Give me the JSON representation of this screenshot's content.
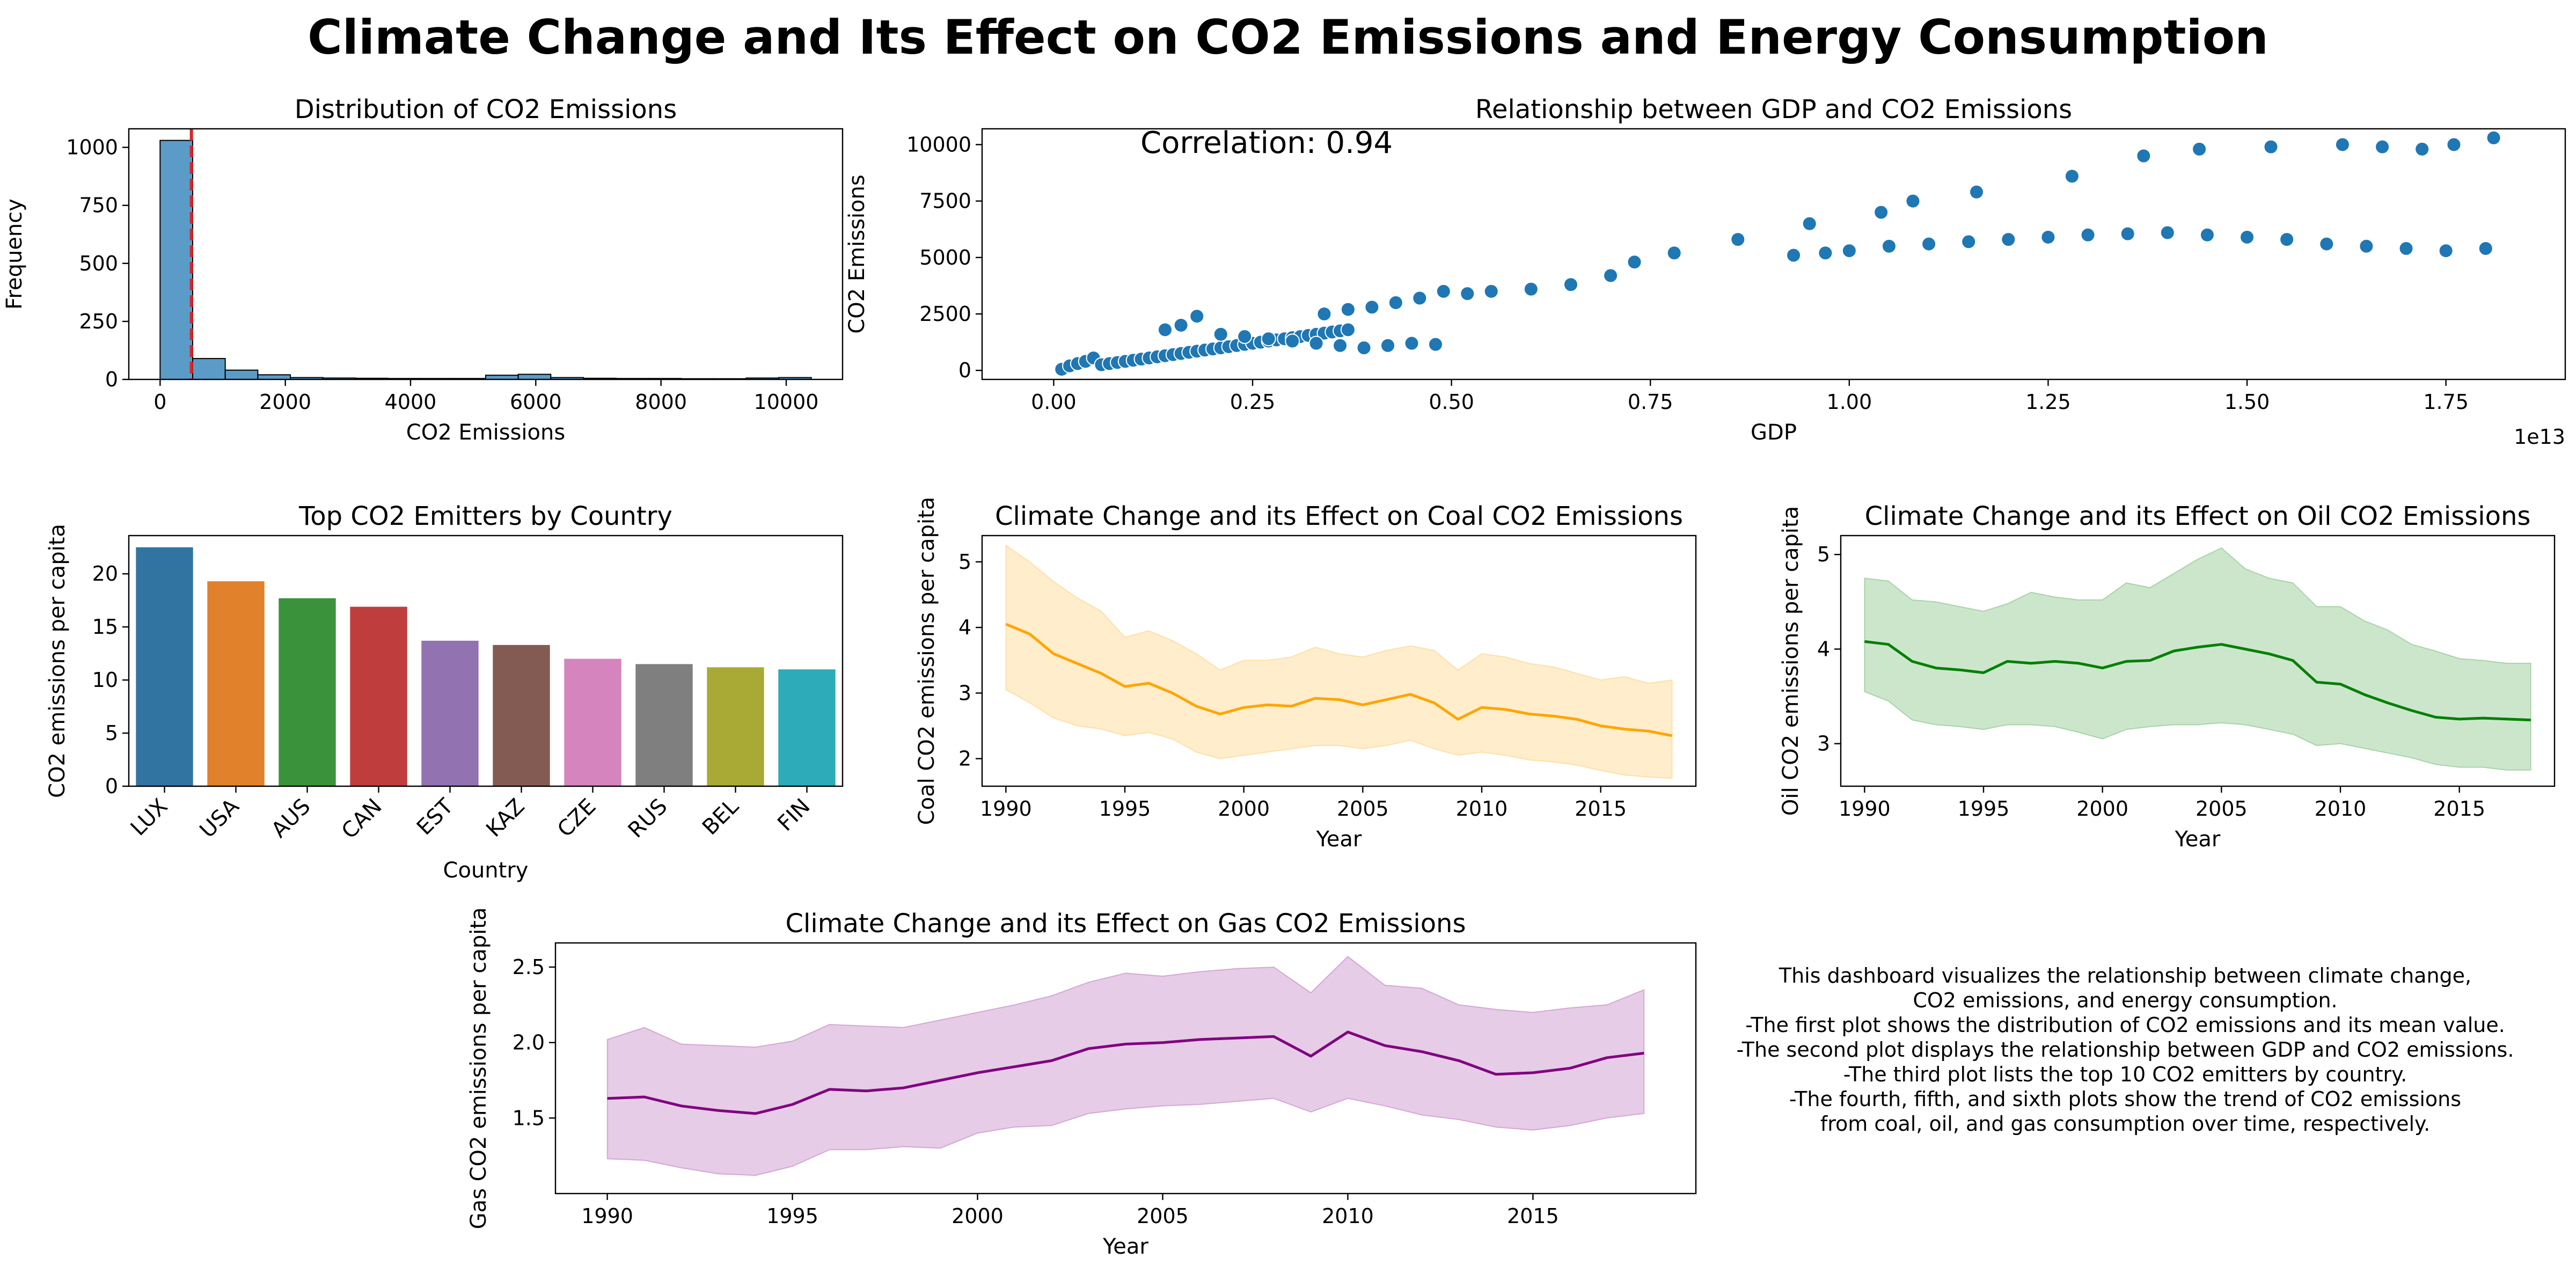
{
  "page": {
    "title": "Climate Change and Its Effect on CO2 Emissions and Energy Consumption",
    "description": [
      "This dashboard visualizes the relationship between climate change,",
      "CO2 emissions, and energy consumption.",
      "-The first plot shows the distribution of CO2 emissions and its mean value.",
      "-The second plot displays the relationship between GDP and CO2 emissions.",
      "-The third plot lists the top 10 CO2 emitters by country.",
      "-The fourth, fifth, and sixth plots show the trend of CO2 emissions",
      "from coal, oil, and gas consumption over time, respectively."
    ]
  },
  "colors": {
    "hist": "#5b9bc8",
    "mean_line": "#d62728",
    "scatter": "#1f77b4",
    "coal": "#ffa500",
    "oil": "#008000",
    "gas": "#800080",
    "bars": [
      "#3274a1",
      "#e1812c",
      "#3a923a",
      "#c03d3e",
      "#9372b2",
      "#845b53",
      "#d684bd",
      "#7f7f7f",
      "#a9aa35",
      "#2eabb8"
    ]
  },
  "chart_data": [
    {
      "id": "hist",
      "type": "bar",
      "title": "Distribution of CO2 Emissions",
      "xlabel": "CO2 Emissions",
      "ylabel": "Frequency",
      "xlim": [
        -500,
        10900
      ],
      "ylim": [
        0,
        1080
      ],
      "xticks": [
        0,
        2000,
        4000,
        6000,
        8000,
        10000
      ],
      "yticks": [
        0,
        250,
        500,
        750,
        1000
      ],
      "bin_edges": [
        0,
        520,
        1040,
        1560,
        2080,
        2600,
        3120,
        3640,
        4160,
        4680,
        5200,
        5720,
        6240,
        6760,
        7280,
        7800,
        8320,
        8840,
        9360,
        9880,
        10400
      ],
      "values": [
        1030,
        90,
        40,
        20,
        8,
        6,
        5,
        4,
        4,
        4,
        18,
        22,
        8,
        5,
        4,
        4,
        3,
        3,
        6,
        8
      ],
      "mean": 500
    },
    {
      "id": "scatter",
      "type": "scatter",
      "title": "Relationship between GDP and CO2 Emissions",
      "xlabel": "GDP",
      "ylabel": "CO2 Emissions",
      "xscale_label": "1e13",
      "annotation": "Correlation: 0.94",
      "xlim": [
        -0.09,
        1.9
      ],
      "ylim": [
        -400,
        10700
      ],
      "xticks": [
        0.0,
        0.25,
        0.5,
        0.75,
        1.0,
        1.25,
        1.5,
        1.75
      ],
      "xtick_labels": [
        "0.00",
        "0.25",
        "0.50",
        "0.75",
        "1.00",
        "1.25",
        "1.50",
        "1.75"
      ],
      "yticks": [
        0,
        2500,
        5000,
        7500,
        10000
      ],
      "points": [
        [
          0.01,
          50
        ],
        [
          0.02,
          200
        ],
        [
          0.03,
          300
        ],
        [
          0.04,
          400
        ],
        [
          0.05,
          550
        ],
        [
          0.06,
          250
        ],
        [
          0.07,
          300
        ],
        [
          0.08,
          350
        ],
        [
          0.09,
          400
        ],
        [
          0.1,
          450
        ],
        [
          0.11,
          500
        ],
        [
          0.12,
          550
        ],
        [
          0.13,
          600
        ],
        [
          0.14,
          650
        ],
        [
          0.15,
          700
        ],
        [
          0.16,
          750
        ],
        [
          0.17,
          800
        ],
        [
          0.18,
          850
        ],
        [
          0.19,
          900
        ],
        [
          0.2,
          950
        ],
        [
          0.21,
          1000
        ],
        [
          0.22,
          1050
        ],
        [
          0.23,
          1100
        ],
        [
          0.24,
          1150
        ],
        [
          0.25,
          1200
        ],
        [
          0.26,
          1250
        ],
        [
          0.27,
          1300
        ],
        [
          0.28,
          1350
        ],
        [
          0.29,
          1400
        ],
        [
          0.3,
          1450
        ],
        [
          0.31,
          1500
        ],
        [
          0.32,
          1550
        ],
        [
          0.33,
          1600
        ],
        [
          0.34,
          1650
        ],
        [
          0.35,
          1700
        ],
        [
          0.36,
          1750
        ],
        [
          0.37,
          1800
        ],
        [
          0.14,
          1800
        ],
        [
          0.16,
          2000
        ],
        [
          0.18,
          2400
        ],
        [
          0.21,
          1600
        ],
        [
          0.24,
          1500
        ],
        [
          0.27,
          1400
        ],
        [
          0.3,
          1300
        ],
        [
          0.33,
          1200
        ],
        [
          0.36,
          1100
        ],
        [
          0.39,
          1000
        ],
        [
          0.42,
          1100
        ],
        [
          0.45,
          1200
        ],
        [
          0.48,
          1150
        ],
        [
          0.34,
          2500
        ],
        [
          0.37,
          2700
        ],
        [
          0.4,
          2800
        ],
        [
          0.43,
          3000
        ],
        [
          0.46,
          3200
        ],
        [
          0.49,
          3500
        ],
        [
          0.52,
          3400
        ],
        [
          0.55,
          3500
        ],
        [
          0.6,
          3600
        ],
        [
          0.65,
          3800
        ],
        [
          0.7,
          4200
        ],
        [
          0.73,
          4800
        ],
        [
          0.78,
          5200
        ],
        [
          0.86,
          5800
        ],
        [
          0.93,
          5100
        ],
        [
          0.97,
          5200
        ],
        [
          1.0,
          5300
        ],
        [
          1.05,
          5500
        ],
        [
          1.1,
          5600
        ],
        [
          1.15,
          5700
        ],
        [
          1.2,
          5800
        ],
        [
          1.25,
          5900
        ],
        [
          1.3,
          6000
        ],
        [
          1.35,
          6050
        ],
        [
          1.4,
          6100
        ],
        [
          1.45,
          6000
        ],
        [
          1.5,
          5900
        ],
        [
          1.55,
          5800
        ],
        [
          1.6,
          5600
        ],
        [
          1.65,
          5500
        ],
        [
          1.7,
          5400
        ],
        [
          1.75,
          5300
        ],
        [
          1.8,
          5400
        ],
        [
          0.95,
          6500
        ],
        [
          1.04,
          7000
        ],
        [
          1.08,
          7500
        ],
        [
          1.16,
          7900
        ],
        [
          1.28,
          8600
        ],
        [
          1.37,
          9500
        ],
        [
          1.44,
          9800
        ],
        [
          1.53,
          9900
        ],
        [
          1.62,
          10000
        ],
        [
          1.67,
          9900
        ],
        [
          1.72,
          9800
        ],
        [
          1.76,
          10000
        ],
        [
          1.81,
          10300
        ]
      ]
    },
    {
      "id": "bars",
      "type": "bar",
      "title": "Top CO2 Emitters by Country",
      "xlabel": "Country",
      "ylabel": "CO2 emissions per capita",
      "categories": [
        "LUX",
        "USA",
        "AUS",
        "CAN",
        "EST",
        "KAZ",
        "CZE",
        "RUS",
        "BEL",
        "FIN"
      ],
      "values": [
        22.5,
        19.3,
        17.7,
        16.9,
        13.7,
        13.3,
        12.0,
        11.5,
        11.2,
        11.0
      ],
      "ylim": [
        0,
        23.6
      ],
      "yticks": [
        0,
        5,
        10,
        15,
        20
      ]
    },
    {
      "id": "coal",
      "type": "line",
      "title": "Climate Change and its Effect on Coal CO2 Emissions",
      "xlabel": "Year",
      "ylabel": "Coal CO2 emissions per capita",
      "x": [
        1990,
        1991,
        1992,
        1993,
        1994,
        1995,
        1996,
        1997,
        1998,
        1999,
        2000,
        2001,
        2002,
        2003,
        2004,
        2005,
        2006,
        2007,
        2008,
        2009,
        2010,
        2011,
        2012,
        2013,
        2014,
        2015,
        2016,
        2017,
        2018
      ],
      "y": [
        4.05,
        3.9,
        3.6,
        3.45,
        3.3,
        3.1,
        3.15,
        3.0,
        2.8,
        2.68,
        2.78,
        2.82,
        2.8,
        2.92,
        2.9,
        2.82,
        2.9,
        2.98,
        2.85,
        2.6,
        2.78,
        2.75,
        2.68,
        2.65,
        2.6,
        2.5,
        2.45,
        2.42,
        2.35
      ],
      "upper": [
        5.25,
        5.0,
        4.7,
        4.45,
        4.25,
        3.85,
        3.95,
        3.8,
        3.6,
        3.35,
        3.5,
        3.5,
        3.55,
        3.7,
        3.6,
        3.55,
        3.65,
        3.72,
        3.65,
        3.35,
        3.6,
        3.55,
        3.45,
        3.4,
        3.3,
        3.2,
        3.25,
        3.15,
        3.2
      ],
      "lower": [
        3.05,
        2.85,
        2.62,
        2.5,
        2.45,
        2.35,
        2.4,
        2.3,
        2.1,
        2.0,
        2.05,
        2.1,
        2.15,
        2.2,
        2.2,
        2.15,
        2.2,
        2.28,
        2.15,
        2.05,
        2.1,
        2.05,
        1.98,
        1.95,
        1.9,
        1.82,
        1.75,
        1.72,
        1.7
      ],
      "xlim": [
        1989,
        2019
      ],
      "ylim": [
        1.58,
        5.4
      ],
      "xticks": [
        1990,
        1995,
        2000,
        2005,
        2010,
        2015
      ],
      "yticks": [
        2,
        3,
        4,
        5
      ]
    },
    {
      "id": "oil",
      "type": "line",
      "title": "Climate Change and its Effect on Oil CO2 Emissions",
      "xlabel": "Year",
      "ylabel": "Oil CO2 emissions per capita",
      "x": [
        1990,
        1991,
        1992,
        1993,
        1994,
        1995,
        1996,
        1997,
        1998,
        1999,
        2000,
        2001,
        2002,
        2003,
        2004,
        2005,
        2006,
        2007,
        2008,
        2009,
        2010,
        2011,
        2012,
        2013,
        2014,
        2015,
        2016,
        2017,
        2018
      ],
      "y": [
        4.08,
        4.05,
        3.87,
        3.8,
        3.78,
        3.75,
        3.87,
        3.85,
        3.87,
        3.85,
        3.8,
        3.87,
        3.88,
        3.98,
        4.02,
        4.05,
        4.0,
        3.95,
        3.88,
        3.65,
        3.63,
        3.52,
        3.43,
        3.35,
        3.28,
        3.26,
        3.27,
        3.26,
        3.25
      ],
      "upper": [
        4.75,
        4.72,
        4.52,
        4.5,
        4.45,
        4.4,
        4.48,
        4.6,
        4.55,
        4.52,
        4.52,
        4.7,
        4.65,
        4.8,
        4.95,
        5.07,
        4.85,
        4.75,
        4.7,
        4.45,
        4.45,
        4.3,
        4.2,
        4.05,
        3.98,
        3.9,
        3.88,
        3.85,
        3.85
      ],
      "lower": [
        3.55,
        3.45,
        3.25,
        3.2,
        3.18,
        3.15,
        3.2,
        3.2,
        3.18,
        3.12,
        3.05,
        3.15,
        3.18,
        3.2,
        3.2,
        3.22,
        3.2,
        3.15,
        3.1,
        2.98,
        3.0,
        2.95,
        2.9,
        2.85,
        2.78,
        2.75,
        2.75,
        2.72,
        2.72
      ],
      "xlim": [
        1989,
        2019
      ],
      "ylim": [
        2.55,
        5.2
      ],
      "xticks": [
        1990,
        1995,
        2000,
        2005,
        2010,
        2015
      ],
      "yticks": [
        3,
        4,
        5
      ]
    },
    {
      "id": "gas",
      "type": "line",
      "title": "Climate Change and its Effect on Gas CO2 Emissions",
      "xlabel": "Year",
      "ylabel": "Gas CO2 emissions per capita",
      "x": [
        1990,
        1991,
        1992,
        1993,
        1994,
        1995,
        1996,
        1997,
        1998,
        1999,
        2000,
        2001,
        2002,
        2003,
        2004,
        2005,
        2006,
        2007,
        2008,
        2009,
        2010,
        2011,
        2012,
        2013,
        2014,
        2015,
        2016,
        2017,
        2018
      ],
      "y": [
        1.63,
        1.64,
        1.58,
        1.55,
        1.53,
        1.59,
        1.69,
        1.68,
        1.7,
        1.75,
        1.8,
        1.84,
        1.88,
        1.96,
        1.99,
        2.0,
        2.02,
        2.03,
        2.04,
        1.91,
        2.07,
        1.98,
        1.94,
        1.88,
        1.79,
        1.8,
        1.83,
        1.9,
        1.93
      ],
      "upper": [
        2.02,
        2.1,
        1.99,
        1.98,
        1.97,
        2.01,
        2.12,
        2.11,
        2.1,
        2.15,
        2.2,
        2.25,
        2.31,
        2.4,
        2.46,
        2.44,
        2.47,
        2.49,
        2.5,
        2.33,
        2.57,
        2.38,
        2.36,
        2.25,
        2.22,
        2.2,
        2.23,
        2.25,
        2.35
      ],
      "lower": [
        1.23,
        1.22,
        1.17,
        1.13,
        1.12,
        1.18,
        1.29,
        1.29,
        1.31,
        1.3,
        1.4,
        1.44,
        1.45,
        1.53,
        1.56,
        1.58,
        1.59,
        1.61,
        1.63,
        1.54,
        1.63,
        1.58,
        1.52,
        1.49,
        1.44,
        1.42,
        1.45,
        1.5,
        1.53
      ],
      "xlim": [
        1988.6,
        2019.4
      ],
      "ylim": [
        1.0,
        2.66
      ],
      "xticks": [
        1990,
        1995,
        2000,
        2005,
        2010,
        2015
      ],
      "yticks": [
        1.5,
        2.0,
        2.5
      ],
      "ytick_labels": [
        "1.5",
        "2.0",
        "2.5"
      ]
    }
  ]
}
